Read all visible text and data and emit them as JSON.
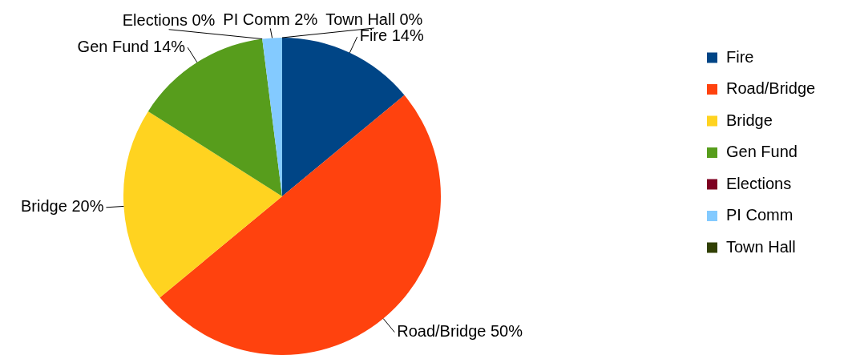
{
  "chart_data": {
    "type": "pie",
    "categories": [
      "Fire",
      "Road/Bridge",
      "Bridge",
      "Gen Fund",
      "Elections",
      "PI Comm",
      "Town Hall"
    ],
    "values": [
      14,
      50,
      20,
      14,
      0,
      2,
      0
    ],
    "colors": [
      "#004586",
      "#ff420e",
      "#ffd320",
      "#579d1c",
      "#7e0021",
      "#83caff",
      "#314004"
    ],
    "value_labels": [
      "Fire 14%",
      "Road/Bridge 50%",
      "Bridge 20%",
      "Gen Fund 14%",
      "Elections 0%",
      "PI Comm 2%",
      "Town Hall 0%"
    ],
    "legend": "right"
  }
}
